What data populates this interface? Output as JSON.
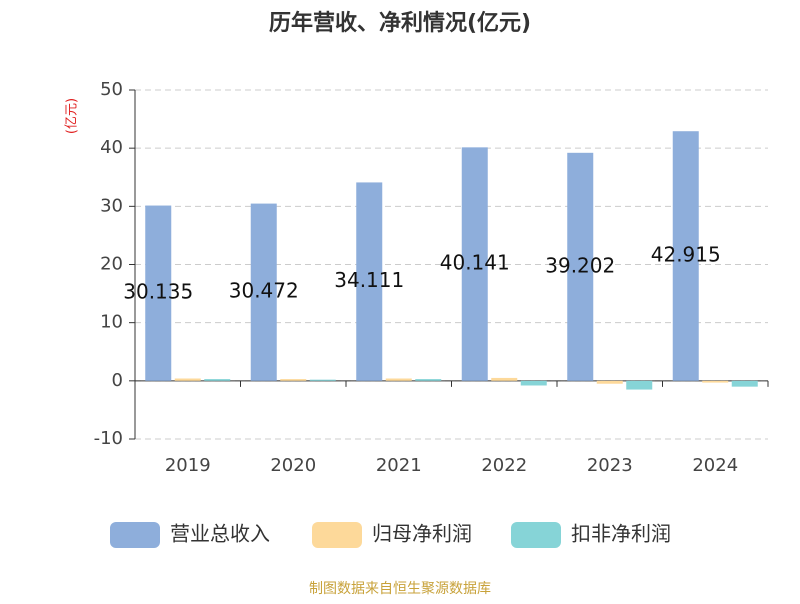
{
  "chart_data": {
    "type": "bar",
    "title": "历年营收、净利情况(亿元)",
    "y_label": "(亿元)",
    "categories": [
      "2019",
      "2020",
      "2021",
      "2022",
      "2023",
      "2024"
    ],
    "series": [
      {
        "name": "营业总收入",
        "color": "#8eaedb",
        "values": [
          30.135,
          30.472,
          34.111,
          40.141,
          39.202,
          42.915
        ],
        "show_labels": true
      },
      {
        "name": "归母净利润",
        "color": "#fdd99a",
        "values": [
          0.4,
          0.3,
          0.4,
          0.5,
          -0.5,
          -0.3
        ]
      },
      {
        "name": "扣非净利润",
        "color": "#86d4d7",
        "values": [
          0.3,
          0.2,
          0.3,
          -0.8,
          -1.5,
          -1.0
        ]
      }
    ],
    "ylim": [
      -10,
      50
    ],
    "yticks": [
      -10,
      0,
      10,
      20,
      30,
      40,
      50
    ],
    "grid": true,
    "source": "制图数据来自恒生聚源数据库"
  }
}
